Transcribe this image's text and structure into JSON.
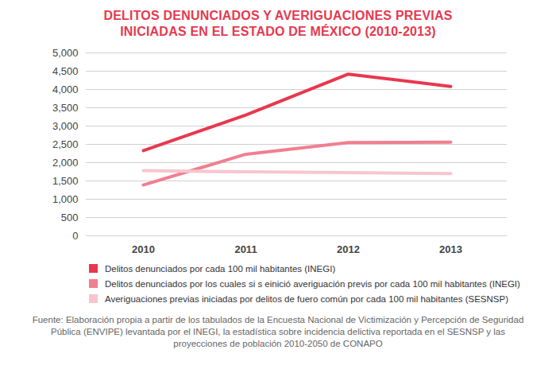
{
  "chart_data": {
    "type": "line",
    "title": "DELITOS DENUNCIADOS Y AVERIGUACIONES PREVIAS INICIADAS EN EL ESTADO DE MÉXICO (2010-2013)",
    "categories": [
      "2010",
      "2011",
      "2012",
      "2013"
    ],
    "series": [
      {
        "name": "Delitos denunciados por cada 100 mil habitantes (INEGI)",
        "color": "#e8384f",
        "values": [
          2330,
          3300,
          4420,
          4080
        ]
      },
      {
        "name": "Delitos denunciados por los cuales si s einició averiguación previs por cada 100 mil habitantes (INEGI)",
        "color": "#f07f8f",
        "values": [
          1390,
          2230,
          2550,
          2560
        ]
      },
      {
        "name": "Averiguaciones previas iniciadas por delitos de fuero común por cada 100 mil habitantes (SESNSP)",
        "color": "#f8c5cc",
        "values": [
          1780,
          1750,
          1730,
          1700
        ]
      }
    ],
    "ylim": [
      0,
      5000
    ],
    "yticks": [
      0,
      500,
      {
        "value": 1000,
        "label": "1,000"
      },
      {
        "value": 1500,
        "label": "1,500"
      },
      {
        "value": 2000,
        "label": "2,000"
      },
      {
        "value": 2500,
        "label": "2,500"
      },
      {
        "value": 3000,
        "label": "3,000"
      },
      {
        "value": 3500,
        "label": "3,500"
      },
      {
        "value": 4000,
        "label": "4,000"
      },
      {
        "value": 4500,
        "label": "4,500"
      },
      {
        "value": 5000,
        "label": "5,000"
      }
    ],
    "grid": true,
    "legend": "bottom",
    "source": "Fuente: Elaboración propia a partir de los tabulados de la Encuesta Nacional de Victimización y Percepción de Seguridad Pública (ENVIPE) levantada por el INEGI, la estadística sobre incidencia delictiva reportada en el SESNSP y las proyecciones de población 2010-2050 de CONAPO"
  }
}
